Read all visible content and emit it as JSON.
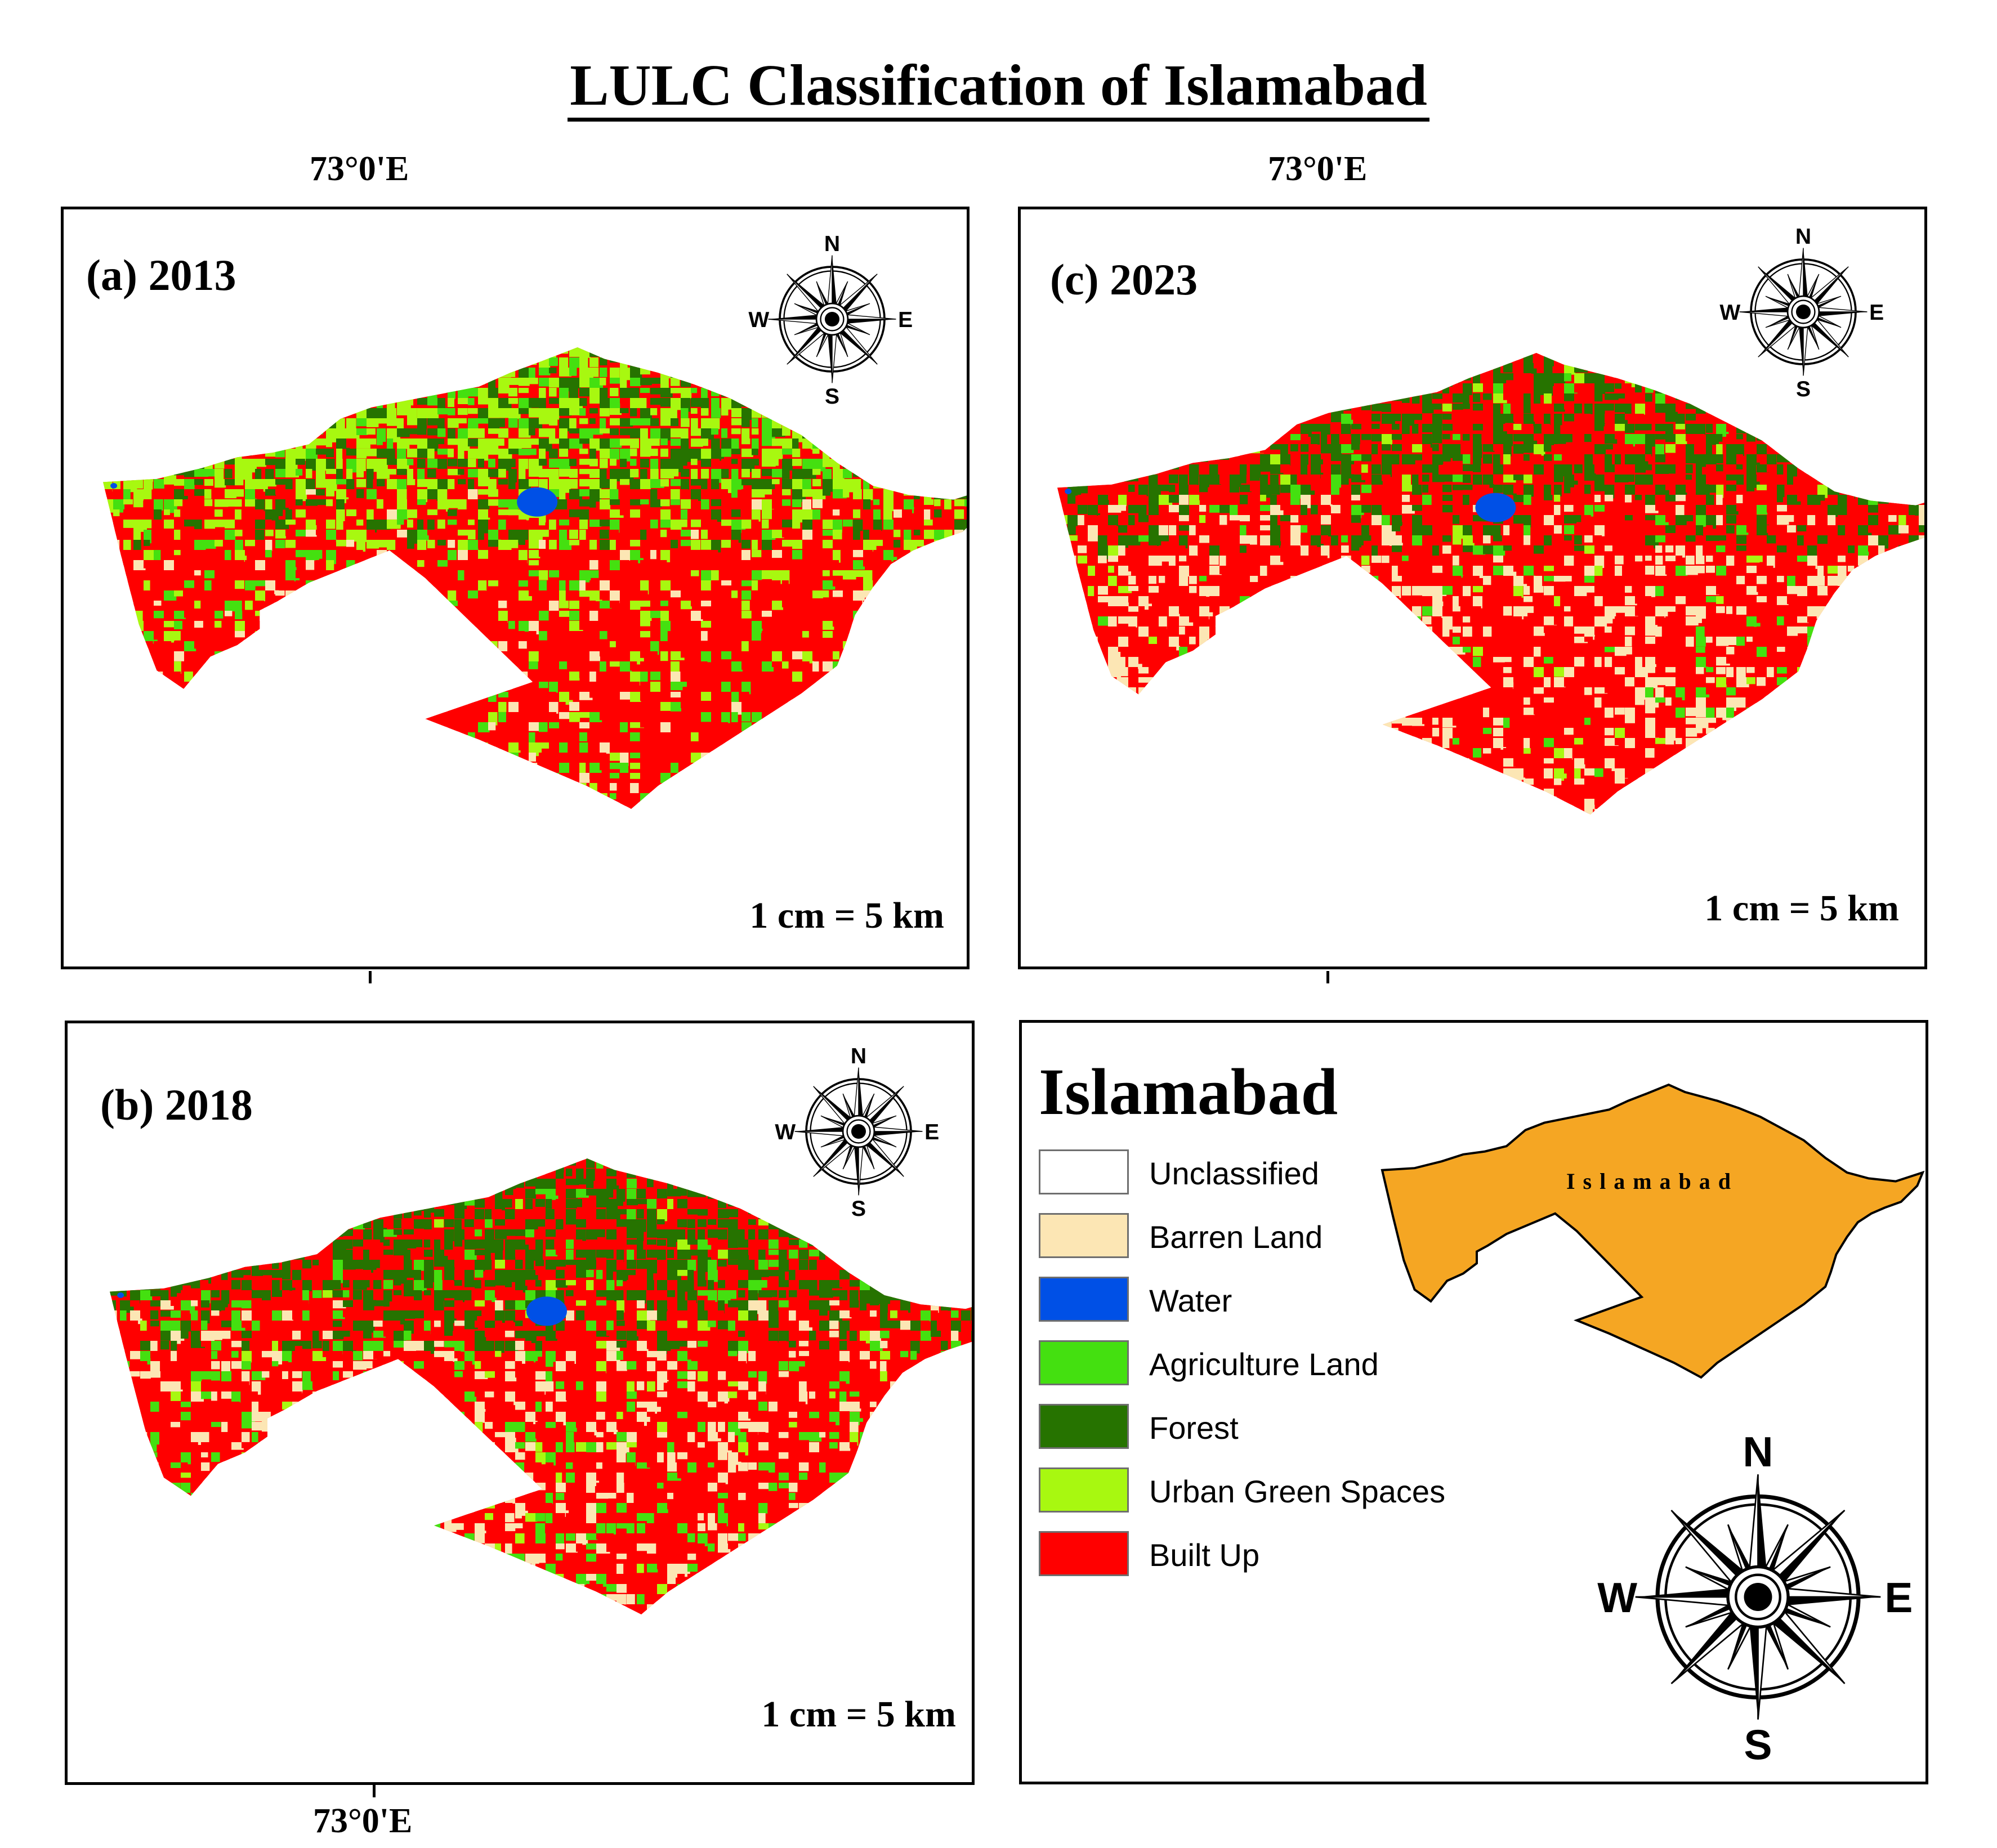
{
  "title": "LULC  Classification of  Islamabad",
  "longitude_label": "73°0'E",
  "compass": {
    "n": "N",
    "s": "S",
    "e": "E",
    "w": "W"
  },
  "panels": [
    {
      "id": "a",
      "label": "(a) 2013",
      "scale": "1 cm = 5 km"
    },
    {
      "id": "b",
      "label": "(b) 2018",
      "scale": "1 cm = 5 km"
    },
    {
      "id": "c",
      "label": "(c) 2023",
      "scale": "1 cm = 5 km"
    }
  ],
  "legend": {
    "title": "Islamabad",
    "locator_label": "Islamabad",
    "locator_color": "#F5A623",
    "items": [
      {
        "label": "Unclassified",
        "color": "#FFFFFF"
      },
      {
        "label": "Barren Land",
        "color": "#FCE6B4"
      },
      {
        "label": "Water",
        "color": "#0050E6"
      },
      {
        "label": "Agriculture Land",
        "color": "#44E010"
      },
      {
        "label": "Forest",
        "color": "#267300"
      },
      {
        "label": "Urban Green Spaces",
        "color": "#A8F810"
      },
      {
        "label": "Built Up",
        "color": "#FF0000"
      }
    ]
  }
}
